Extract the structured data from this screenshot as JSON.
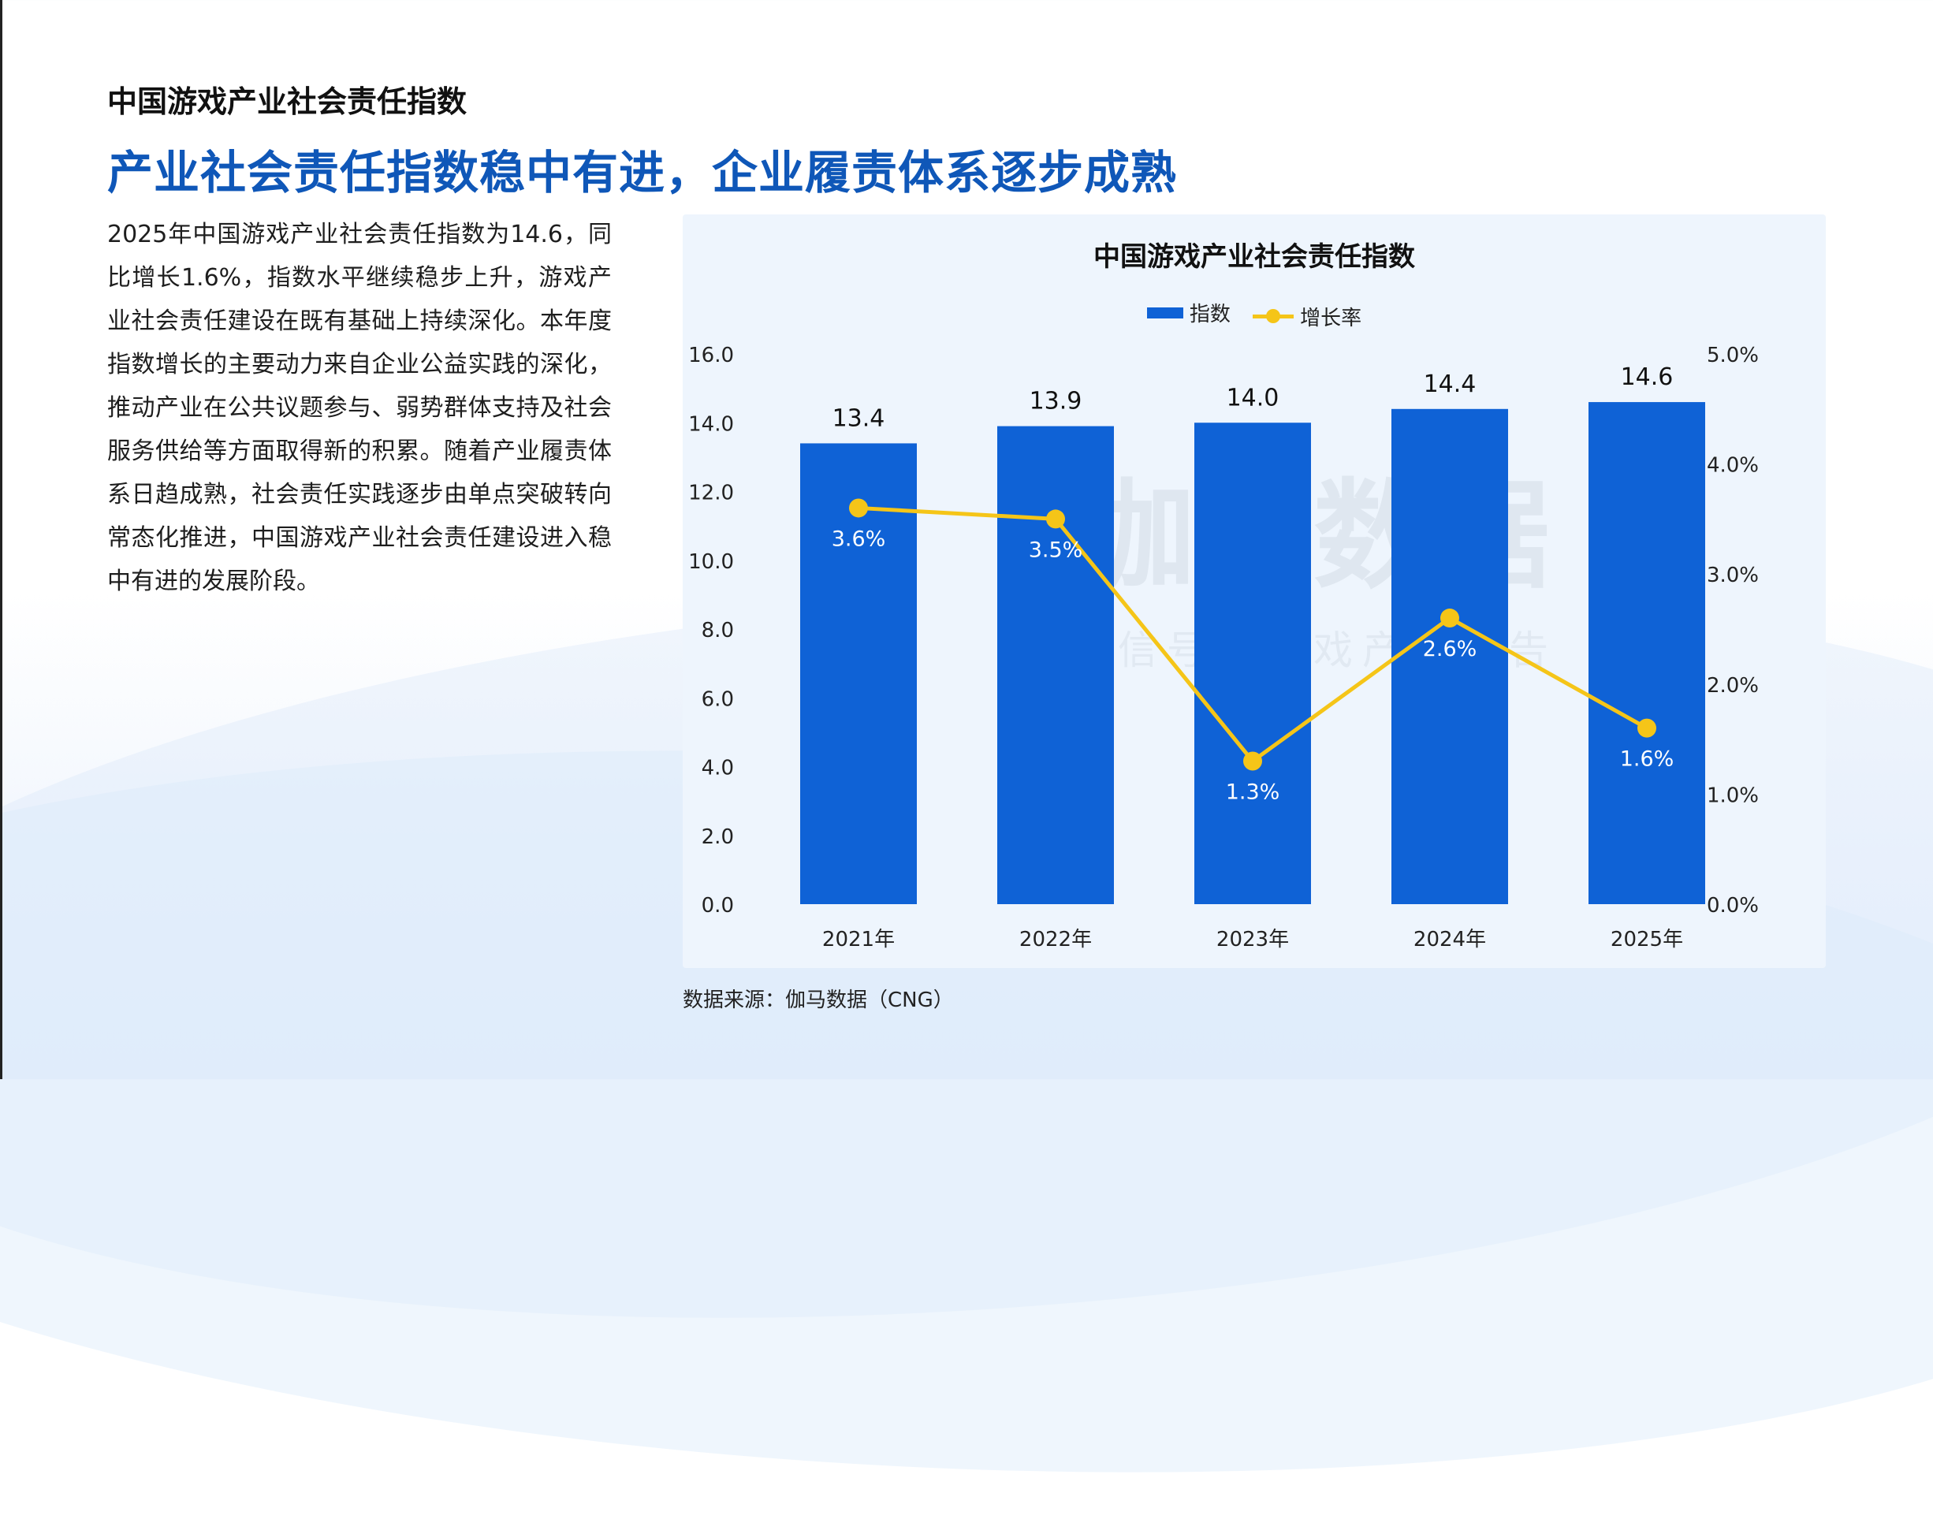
{
  "section_title": "中国游戏产业社会责任指数",
  "headline": "产业社会责任指数稳中有进，企业履责体系逐步成熟",
  "body_text": "2025年中国游戏产业社会责任指数为14.6，同比增长1.6%，指数水平继续稳步上升，游戏产业社会责任建设在既有基础上持续深化。本年度指数增长的主要动力来自企业公益实践的深化，推动产业在公共议题参与、弱势群体支持及社会服务供给等方面取得新的积累。随着产业履责体系日趋成熟，社会责任实践逐步由单点突破转向常态化推进，中国游戏产业社会责任建设进入稳中有进的发展阶段。",
  "source": "数据来源：伽马数据（CNG）",
  "watermark": {
    "main": "伽马数据",
    "sub": "微信号：游戏产业报告"
  },
  "colors": {
    "bar": "#0f62d6",
    "line": "#f5c518",
    "headline": "#0f57b8"
  },
  "chart_data": {
    "type": "bar",
    "title": "中国游戏产业社会责任指数",
    "categories": [
      "2021年",
      "2022年",
      "2023年",
      "2024年",
      "2025年"
    ],
    "series": [
      {
        "name": "指数",
        "type": "bar",
        "axis": "left",
        "values": [
          13.4,
          13.9,
          14.0,
          14.4,
          14.6
        ],
        "labels": [
          "13.4",
          "13.9",
          "14.0",
          "14.4",
          "14.6"
        ]
      },
      {
        "name": "增长率",
        "type": "line",
        "axis": "right",
        "values": [
          3.6,
          3.5,
          1.3,
          2.6,
          1.6
        ],
        "labels": [
          "3.6%",
          "3.5%",
          "1.3%",
          "2.6%",
          "1.6%"
        ]
      }
    ],
    "ylim": [
      0,
      16
    ],
    "y_ticks": [
      "0.0",
      "2.0",
      "4.0",
      "6.0",
      "8.0",
      "10.0",
      "12.0",
      "14.0",
      "16.0"
    ],
    "y2lim": [
      0,
      5
    ],
    "y2_ticks": [
      "0.0%",
      "1.0%",
      "2.0%",
      "3.0%",
      "4.0%",
      "5.0%"
    ],
    "legend_position": "top",
    "grid": false
  }
}
